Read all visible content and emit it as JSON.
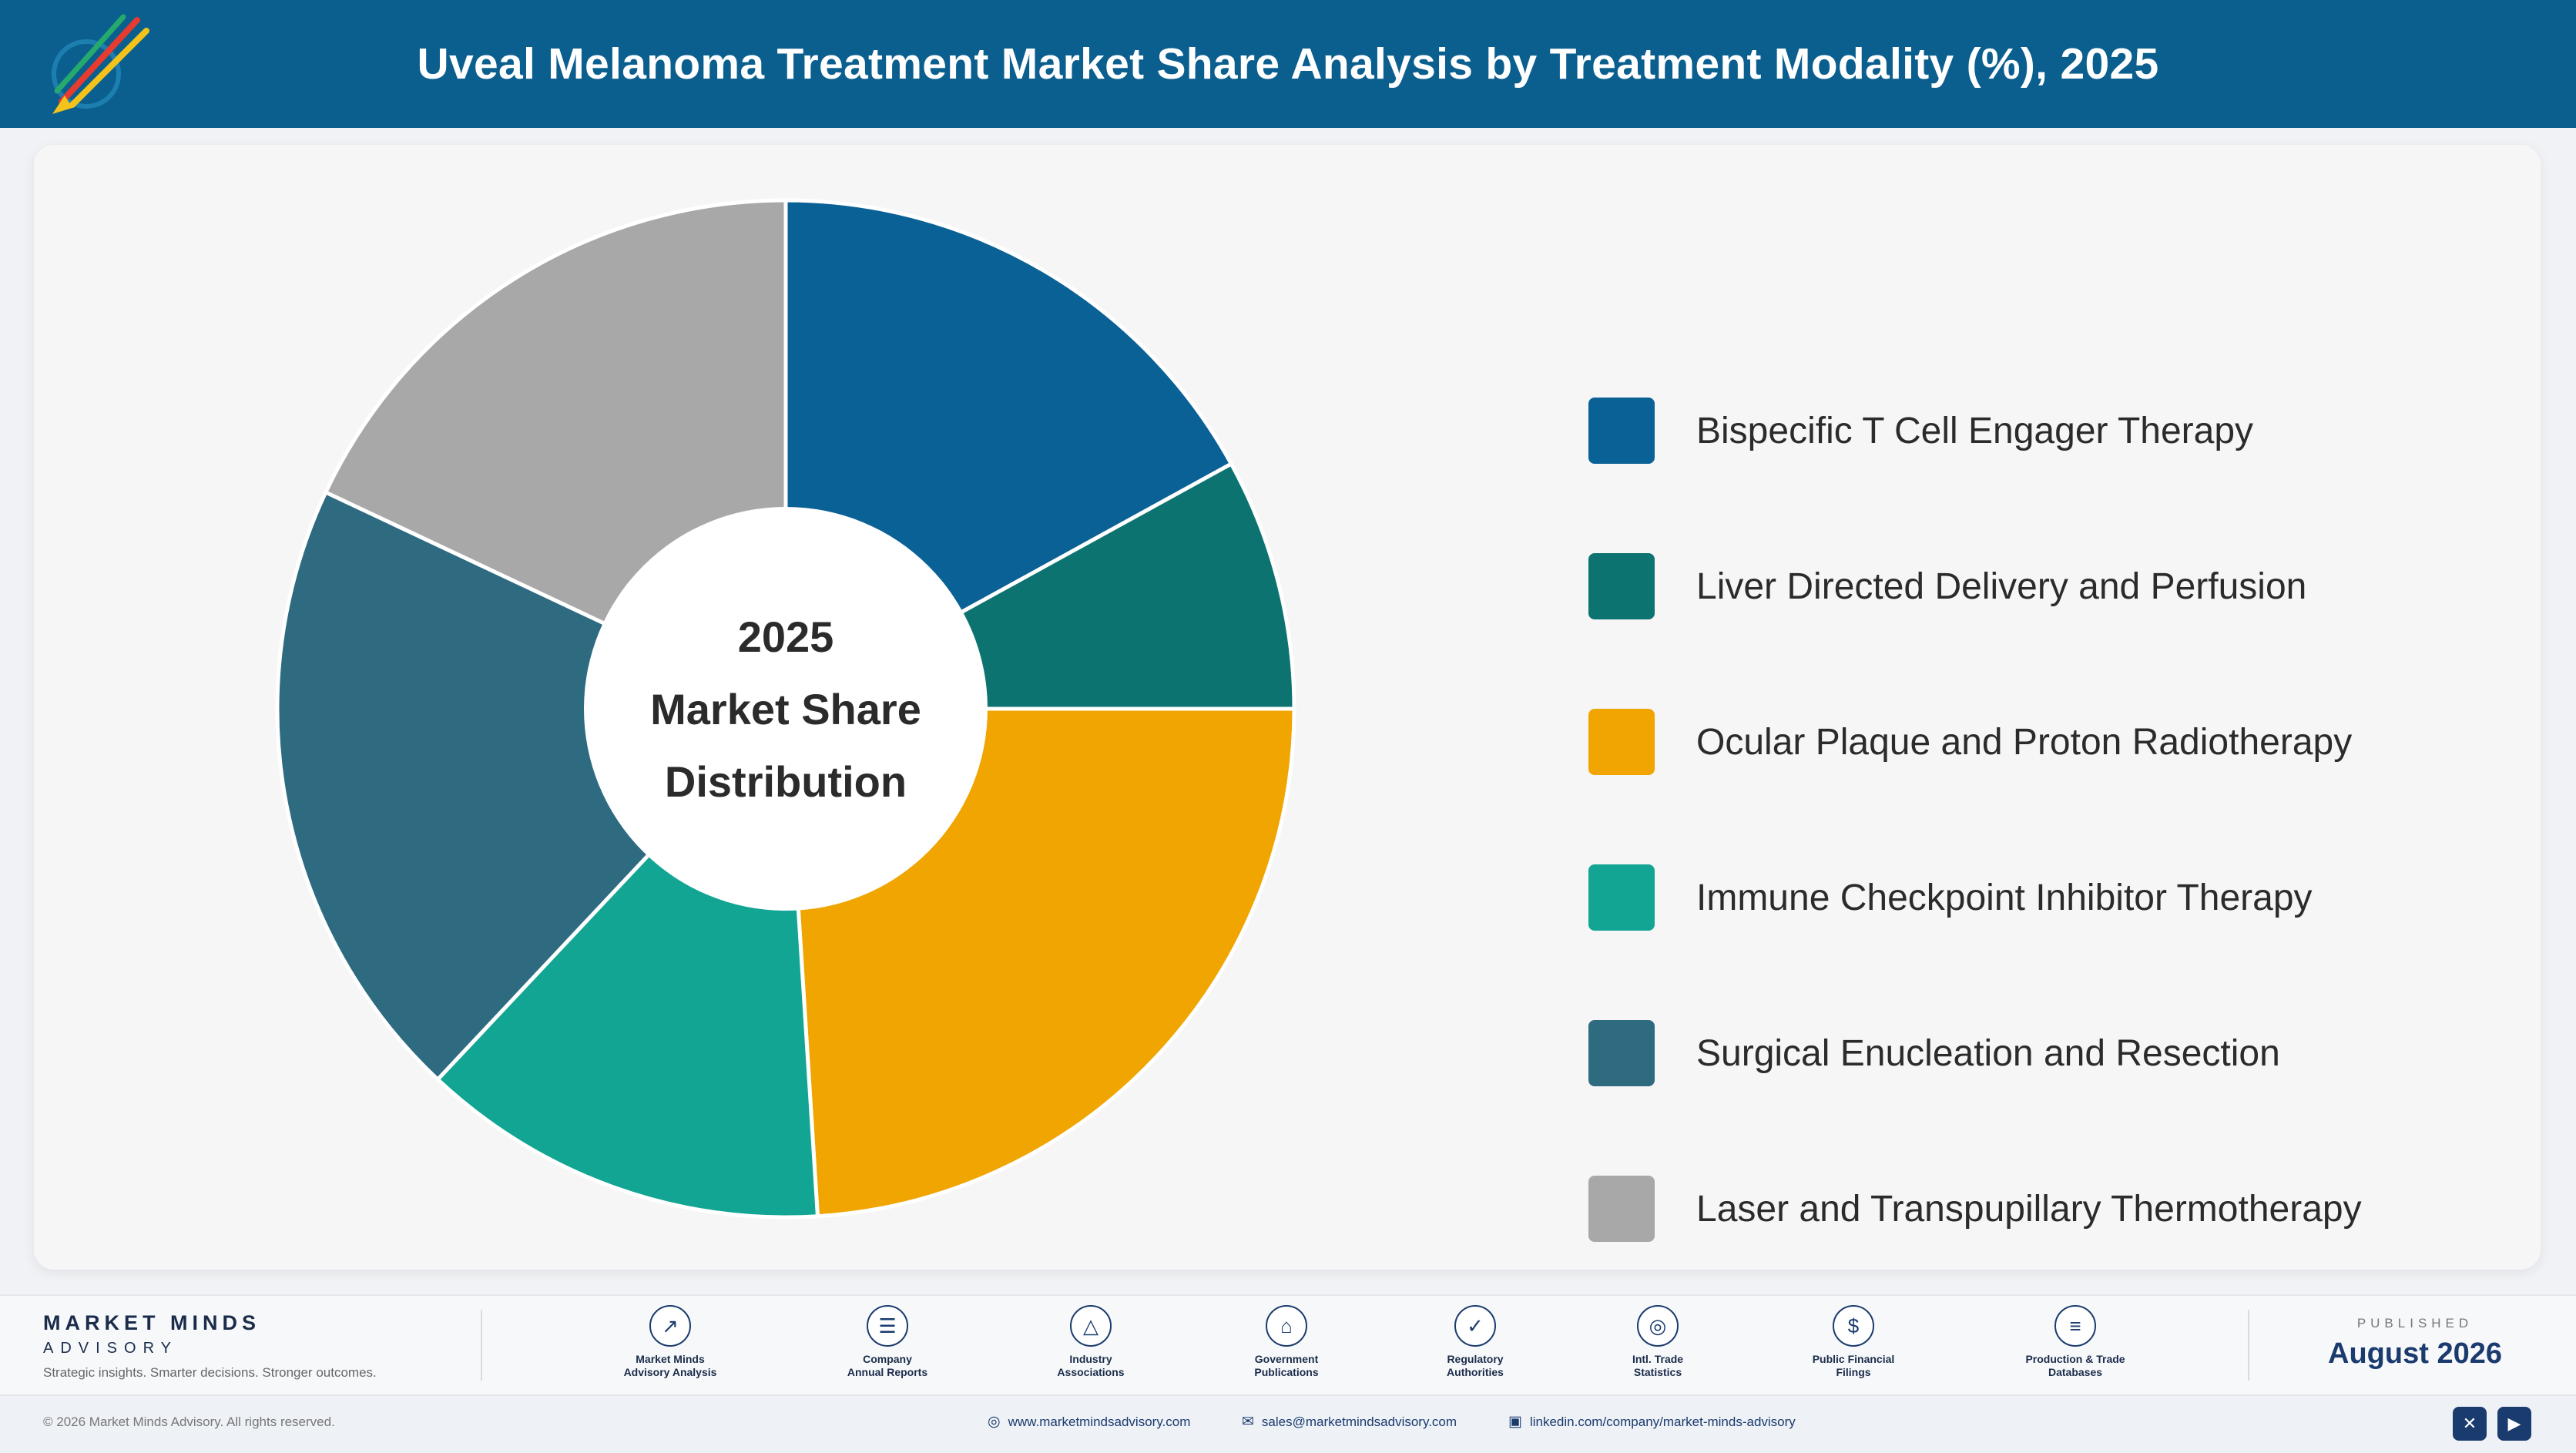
{
  "header": {
    "title": "Uveal Melanoma Treatment Market Share Analysis by Treatment Modality (%), 2025",
    "logo_icon": "rocket-logo-icon"
  },
  "chart_data": {
    "type": "pie",
    "donut": true,
    "center_label": [
      "2025",
      "Market Share",
      "Distribution"
    ],
    "legend_position": "right",
    "categories": [
      "Bispecific T Cell Engager Therapy",
      "Liver Directed Delivery and Perfusion",
      "Ocular Plaque and Proton Radiotherapy",
      "Immune Checkpoint Inhibitor Therapy",
      "Surgical Enucleation and Resection",
      "Laser and Transpupillary Thermotherapy"
    ],
    "values": [
      17,
      8,
      24,
      13,
      20,
      18
    ],
    "colors": [
      "#0a6196",
      "#0d7370",
      "#f0a500",
      "#12a594",
      "#2e6b80",
      "#a8a8a8"
    ]
  },
  "footer": {
    "brand_name": "MARKET MINDS",
    "brand_sub": "ADVISORY",
    "tagline": "Strategic insights. Smarter decisions. Stronger outcomes.",
    "sources": [
      {
        "label": "Market Minds\nAdvisory Analysis",
        "icon": "chart-line-icon",
        "glyph": "↗"
      },
      {
        "label": "Company\nAnnual Reports",
        "icon": "document-icon",
        "glyph": "☰"
      },
      {
        "label": "Industry\nAssociations",
        "icon": "network-icon",
        "glyph": "△"
      },
      {
        "label": "Government\nPublications",
        "icon": "government-building-icon",
        "glyph": "⌂"
      },
      {
        "label": "Regulatory\nAuthorities",
        "icon": "shield-check-icon",
        "glyph": "✓"
      },
      {
        "label": "Intl. Trade\nStatistics",
        "icon": "globe-icon",
        "glyph": "◎"
      },
      {
        "label": "Public Financial\nFilings",
        "icon": "dollar-coin-icon",
        "glyph": "$"
      },
      {
        "label": "Production & Trade\nDatabases",
        "icon": "database-icon",
        "glyph": "≡"
      }
    ],
    "published_label": "PUBLISHED",
    "published_date": "August 2026",
    "copyright": "© 2026 Market Minds Advisory. All rights reserved.",
    "website": "www.marketmindsadvisory.com",
    "email": "sales@marketmindsadvisory.com",
    "linkedin": "linkedin.com/company/market-minds-advisory",
    "social_icons": [
      "x-twitter-icon",
      "youtube-icon"
    ]
  }
}
